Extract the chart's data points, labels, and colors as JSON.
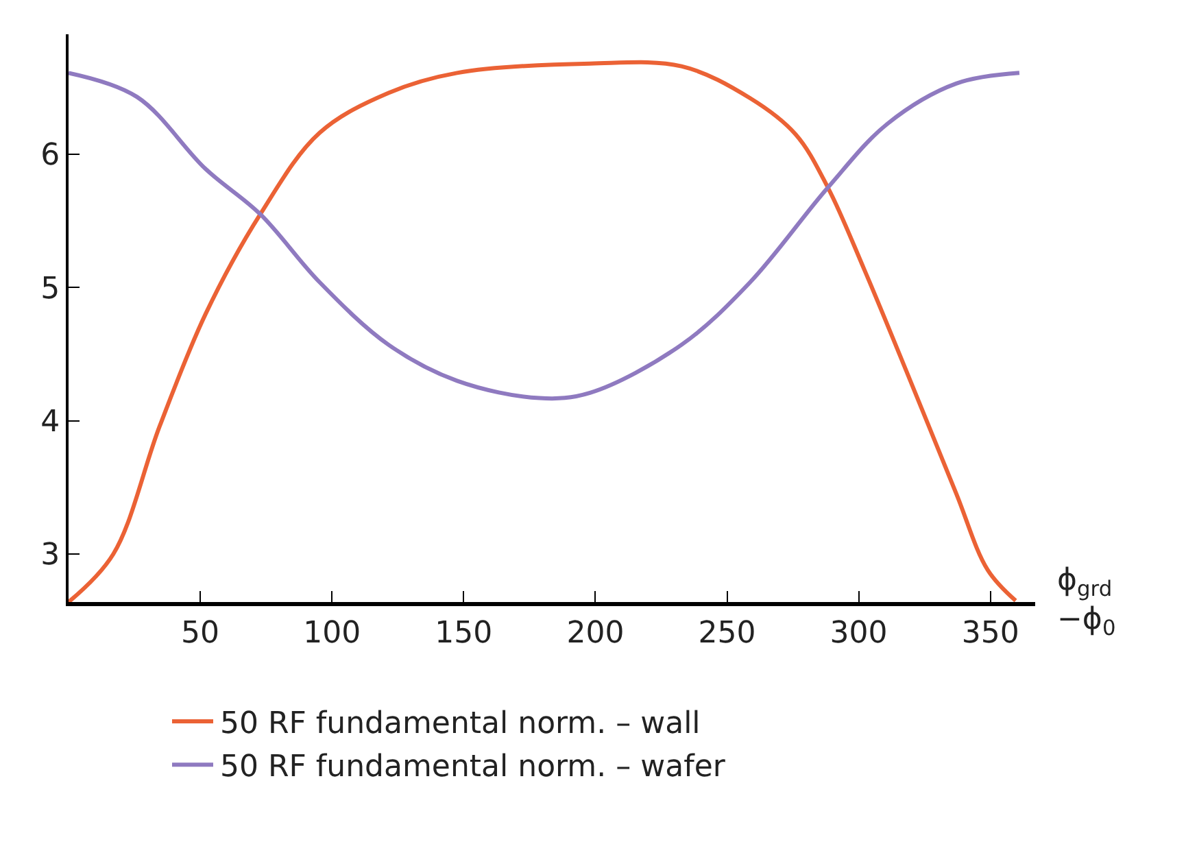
{
  "chart_data": {
    "type": "line",
    "xlabel": "ϕ$_{grd}$\n−ϕ$_{0}$",
    "xlim": [
      0,
      367
    ],
    "ylim": [
      2.64,
      6.9
    ],
    "xticks": [
      50,
      100,
      150,
      200,
      250,
      300,
      350
    ],
    "yticks": [
      3,
      4,
      5,
      6
    ],
    "legend": "bottom",
    "line_style": "solid",
    "marker": "none",
    "series": [
      {
        "name": "50 RF fundamental norm. – wall",
        "color": "#eb6235",
        "x": [
          0,
          17,
          34.6,
          52,
          72.8,
          95.3,
          121.5,
          147.5,
          198,
          232.7,
          258.8,
          276,
          288.3,
          302,
          319.6,
          336.9,
          349,
          359.6
        ],
        "values": [
          2.64,
          3.0,
          3.96,
          4.8,
          5.55,
          6.16,
          6.46,
          6.61,
          6.68,
          6.66,
          6.42,
          6.15,
          5.75,
          5.14,
          4.3,
          3.46,
          2.88,
          2.65
        ]
      },
      {
        "name": "50 RF fundamental norm. – wafer",
        "color": "#8f7ac0",
        "x": [
          0,
          26,
          52,
          72.8,
          95.3,
          121.5,
          147.5,
          178.8,
          198,
          232.7,
          258.8,
          288.3,
          311,
          337,
          361
        ],
        "values": [
          6.61,
          6.43,
          5.89,
          5.55,
          5.04,
          4.57,
          4.3,
          4.17,
          4.21,
          4.57,
          5.04,
          5.75,
          6.23,
          6.53,
          6.61
        ]
      }
    ]
  }
}
